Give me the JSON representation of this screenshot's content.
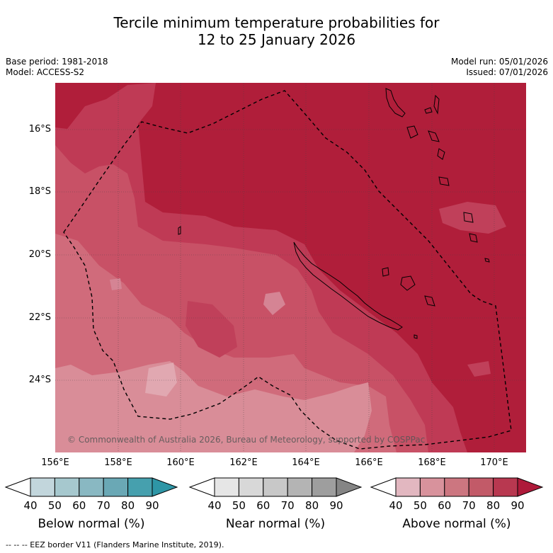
{
  "title_line1": "Tercile minimum temperature probabilities for",
  "title_line2": "12 to 25 January 2026",
  "base_period": "Base period: 1981-2018",
  "model": "Model: ACCESS-S2",
  "model_run": "Model run: 05/01/2026",
  "issued": "Issued: 07/01/2026",
  "lat_labels": [
    "16°S",
    "18°S",
    "20°S",
    "22°S",
    "24°S"
  ],
  "lon_labels": [
    "156°E",
    "158°E",
    "160°E",
    "162°E",
    "164°E",
    "166°E",
    "168°E",
    "170°E"
  ],
  "copyright": "© Commonwealth of Australia 2026, Bureau of Meteorology, supported by COSPPac",
  "colorbars": [
    {
      "label": "Below normal (%)",
      "ticks": [
        "40",
        "50",
        "60",
        "70",
        "80",
        "90"
      ],
      "colors": [
        "#ffffff",
        "#c2d6dc",
        "#a6c8ce",
        "#89b8c2",
        "#6aa8b5",
        "#46a0ae",
        "#2e96a6"
      ]
    },
    {
      "label": "Near normal (%)",
      "ticks": [
        "40",
        "50",
        "60",
        "70",
        "80",
        "90"
      ],
      "colors": [
        "#ffffff",
        "#e6e6e6",
        "#d8d8d8",
        "#c8c8c8",
        "#b4b4b4",
        "#9e9e9e",
        "#858585"
      ]
    },
    {
      "label": "Above normal (%)",
      "ticks": [
        "40",
        "50",
        "60",
        "70",
        "80",
        "90"
      ],
      "colors": [
        "#ffffff",
        "#e2b7c0",
        "#d8929c",
        "#cc7680",
        "#c25a68",
        "#b83850",
        "#ae1a3a"
      ]
    }
  ],
  "footer": "--  --  -- EEZ border V11 (Flanders Marine Institute, 2019)."
}
